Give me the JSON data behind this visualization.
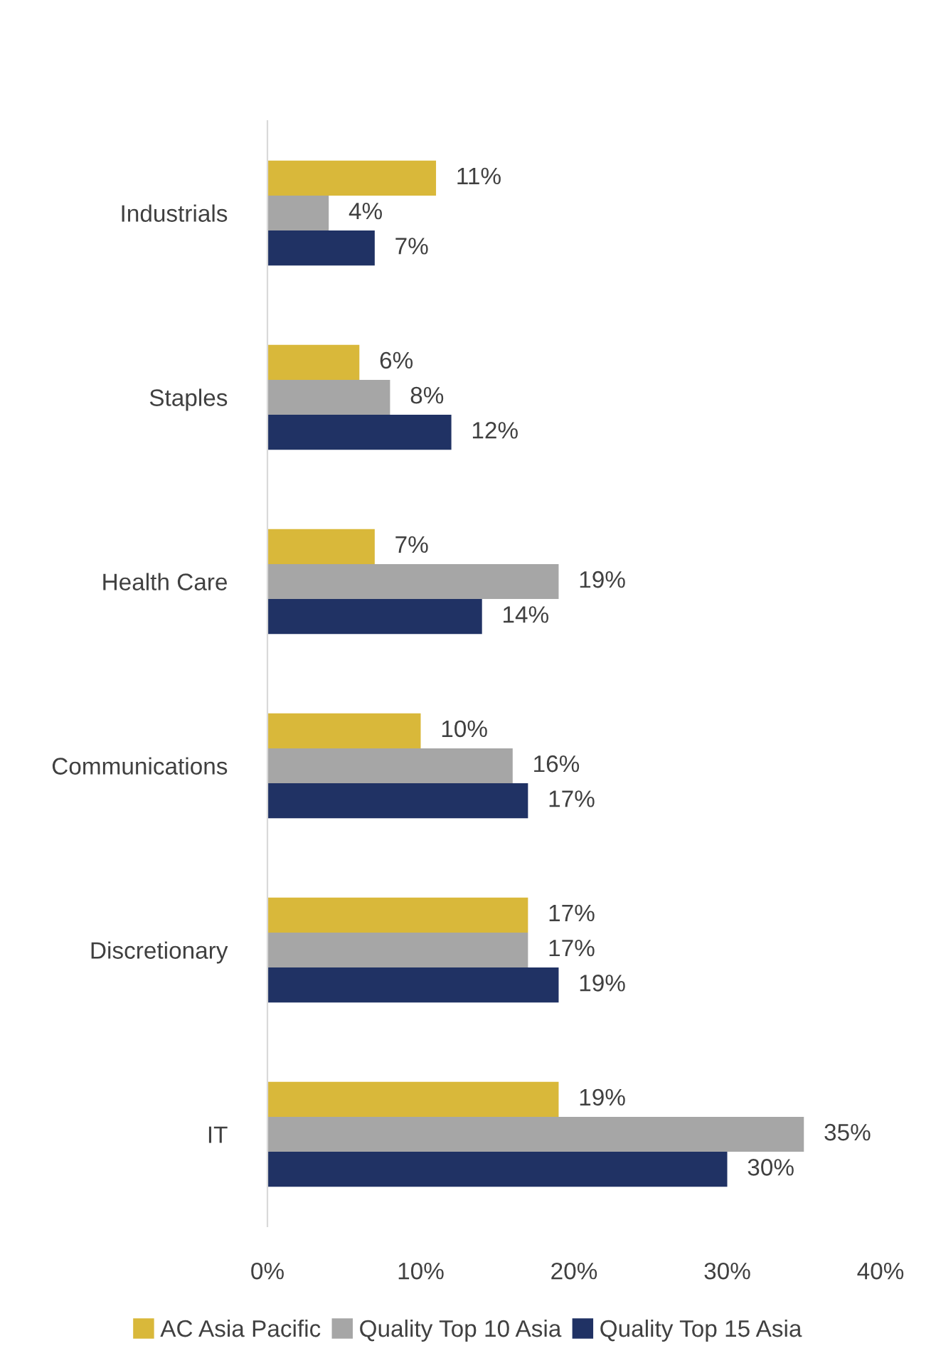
{
  "chart_data": {
    "type": "bar",
    "orientation": "horizontal",
    "categories": [
      "Industrials",
      "Staples",
      "Health Care",
      "Communications",
      "Discretionary",
      "IT"
    ],
    "series": [
      {
        "name": "AC Asia Pacific",
        "color": "#d9b83a",
        "values": [
          11,
          6,
          7,
          10,
          17,
          19
        ],
        "value_labels": [
          "11%",
          "6%",
          "7%",
          "10%",
          "17%",
          "19%"
        ]
      },
      {
        "name": "Quality Top 10 Asia",
        "color": "#a6a6a6",
        "values": [
          4,
          8,
          19,
          16,
          17,
          35
        ],
        "value_labels": [
          "4%",
          "8%",
          "19%",
          "16%",
          "17%",
          "35%"
        ]
      },
      {
        "name": "Quality Top 15 Asia",
        "color": "#203264",
        "values": [
          7,
          12,
          14,
          17,
          19,
          30
        ],
        "value_labels": [
          "7%",
          "12%",
          "14%",
          "17%",
          "19%",
          "30%"
        ]
      }
    ],
    "xlim": [
      0,
      40
    ],
    "xticks": [
      {
        "value": 0,
        "label": "0%"
      },
      {
        "value": 10,
        "label": "10%"
      },
      {
        "value": 20,
        "label": "20%"
      },
      {
        "value": 30,
        "label": "30%"
      },
      {
        "value": 40,
        "label": "40%"
      }
    ],
    "grid": false,
    "legend": "bottom"
  }
}
